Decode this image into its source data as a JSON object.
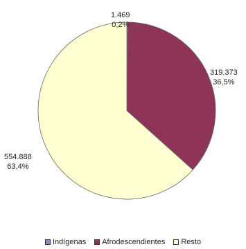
{
  "chart_data": {
    "type": "pie",
    "title": "",
    "categories": [
      "Indígenas",
      "Afrodescendientes",
      "Resto"
    ],
    "values": [
      1469,
      319373,
      554888
    ],
    "value_labels": [
      "1.469",
      "319.373",
      "554.888"
    ],
    "percent_labels": [
      "0,2%",
      "36,5%",
      "63,4%"
    ],
    "colors": [
      "#8b8bd1",
      "#8e3458",
      "#ffffd1"
    ],
    "start_angle_deg": 0,
    "direction": "clockwise",
    "legend_position": "bottom"
  }
}
